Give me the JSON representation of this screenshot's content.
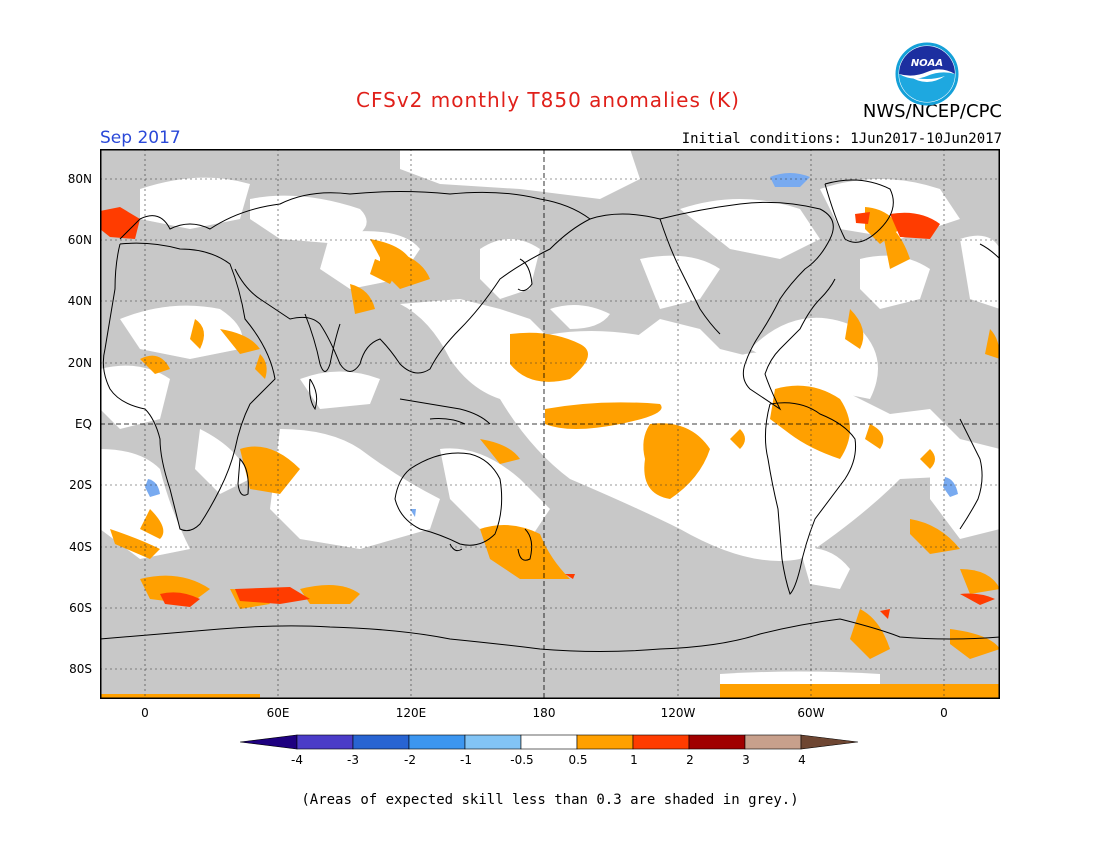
{
  "title": "CFSv2 monthly T850 anomalies (K)",
  "organization": "NWS/NCEP/CPC",
  "logo_text": "NOAA",
  "valid_month": "Sep 2017",
  "initial_conditions": "Initial conditions: 1Jun2017-10Jun2017",
  "footnote": "(Areas of expected skill less than 0.3 are shaded in grey.)",
  "map": {
    "projection": "equirectangular, 0 to 360 plus wrap",
    "grid": "dotted",
    "lat_labels": [
      "80N",
      "60N",
      "40N",
      "20N",
      "EQ",
      "20S",
      "40S",
      "60S",
      "80S"
    ],
    "lon_labels": [
      "0",
      "60E",
      "120E",
      "180",
      "120W",
      "60W",
      "0"
    ],
    "colors": {
      "low_skill_grey": "#c8c8c8",
      "anom_0_5_to_1": "#ffa000",
      "anom_1_to_2": "#ff3c00",
      "anom_neg_0_5_to_neg_1": "#78aaf0",
      "coast": "#000000"
    }
  },
  "colorbar": {
    "labels": [
      "-4",
      "-3",
      "-2",
      "-1",
      "-0.5",
      "0.5",
      "1",
      "2",
      "3",
      "4"
    ],
    "colors": [
      "#1e0080",
      "#4b3cc8",
      "#2864d2",
      "#3c96f0",
      "#82c4f5",
      "#ffffff",
      "#ffa000",
      "#ff3c00",
      "#a00000",
      "#c8a08c",
      "#6e4632"
    ]
  }
}
